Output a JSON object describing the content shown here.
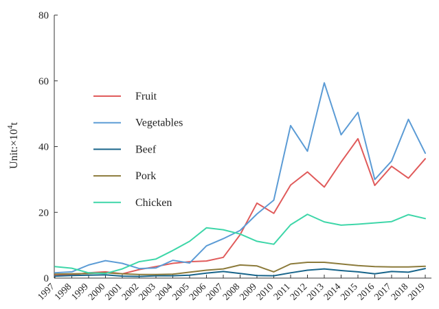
{
  "chart_data": {
    "type": "line",
    "title": "",
    "xlabel": "",
    "ylabel": "Unit:×10⁴t",
    "ylabel_main": "Unit:×10",
    "ylabel_sup": "4",
    "ylabel_tail": "t",
    "ylim": [
      0,
      80
    ],
    "yticks": [
      "0",
      "20",
      "40",
      "60",
      "80"
    ],
    "grid": false,
    "legend_position": "upper-left",
    "categories": [
      "1997",
      "1998",
      "1999",
      "2000",
      "2001",
      "2002",
      "2003",
      "2004",
      "2005",
      "2006",
      "2007",
      "2008",
      "2009",
      "2010",
      "2011",
      "2012",
      "2013",
      "2014",
      "2015",
      "2016",
      "2017",
      "2018",
      "2019"
    ],
    "series": [
      {
        "name": "Fruit",
        "color": "#e05a5a",
        "values": [
          0.8,
          1.0,
          1.6,
          1.9,
          1.3,
          2.6,
          3.5,
          4.5,
          5.0,
          5.2,
          6.3,
          13.2,
          22.8,
          19.7,
          28.3,
          32.3,
          27.7,
          35.3,
          42.4,
          28.2,
          34.0,
          30.4,
          36.3
        ]
      },
      {
        "name": "Vegetables",
        "color": "#5b9bd5",
        "values": [
          1.6,
          1.9,
          4.0,
          5.3,
          4.5,
          2.9,
          3.1,
          5.4,
          4.6,
          9.8,
          12.0,
          14.5,
          19.5,
          23.7,
          46.4,
          38.6,
          59.4,
          43.6,
          50.4,
          30.0,
          35.6,
          48.3,
          38.0
        ]
      },
      {
        "name": "Beef",
        "color": "#17648a",
        "values": [
          0.6,
          0.8,
          0.9,
          1.0,
          0.6,
          0.5,
          0.7,
          0.7,
          0.9,
          1.5,
          2.0,
          1.4,
          0.8,
          0.7,
          1.6,
          2.4,
          2.8,
          2.3,
          1.9,
          1.3,
          2.0,
          1.8,
          2.9
        ]
      },
      {
        "name": "Pork",
        "color": "#8b7a3a",
        "values": [
          1.2,
          1.3,
          1.4,
          1.6,
          1.3,
          1.1,
          1.1,
          1.2,
          1.8,
          2.4,
          2.8,
          4.0,
          3.7,
          1.9,
          4.3,
          4.8,
          4.8,
          4.3,
          3.8,
          3.5,
          3.4,
          3.4,
          3.6
        ]
      },
      {
        "name": "Chicken",
        "color": "#3dd6a8",
        "values": [
          3.5,
          3.0,
          1.6,
          1.4,
          2.8,
          5.0,
          5.8,
          8.4,
          11.2,
          15.3,
          14.7,
          13.4,
          11.2,
          10.3,
          16.2,
          19.4,
          17.1,
          16.1,
          16.4,
          16.8,
          17.2,
          19.3,
          18.1
        ]
      }
    ]
  }
}
